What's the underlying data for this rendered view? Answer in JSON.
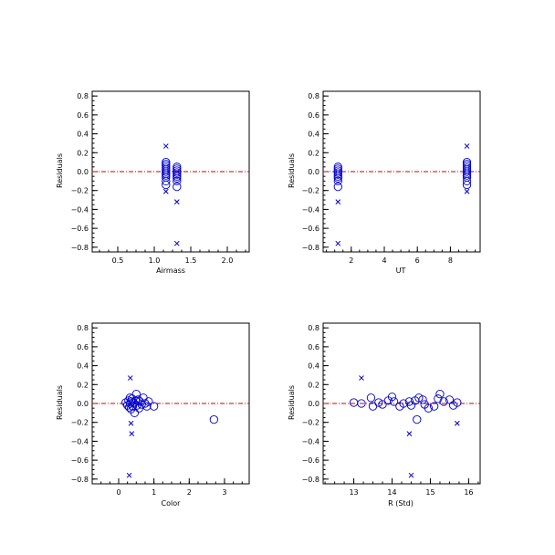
{
  "colors": {
    "axis": "#000000",
    "marker": "#0000cc",
    "zero_line": "#cc0000",
    "background": "#ffffff"
  },
  "chart_data": [
    {
      "type": "scatter",
      "xlabel": "Airmass",
      "ylabel": "Residuals",
      "xlim": [
        0.15,
        2.3
      ],
      "ylim": [
        -0.85,
        0.85
      ],
      "xticks": [
        0.5,
        1.0,
        1.5,
        2.0
      ],
      "xticklabels": [
        "0.5",
        "1.0",
        "1.5",
        "2.0"
      ],
      "yticks": [
        -0.8,
        -0.6,
        -0.4,
        -0.2,
        0.0,
        0.2,
        0.4,
        0.6,
        0.8
      ],
      "yticklabels": [
        "−0.8",
        "−0.6",
        "−0.4",
        "−0.2",
        "0.0",
        "0.2",
        "0.4",
        "0.6",
        "0.8"
      ],
      "zero_line": 0,
      "circles": [
        [
          1.16,
          0.1
        ],
        [
          1.16,
          0.08
        ],
        [
          1.16,
          0.06
        ],
        [
          1.16,
          0.04
        ],
        [
          1.16,
          0.02
        ],
        [
          1.16,
          0.0
        ],
        [
          1.16,
          -0.02
        ],
        [
          1.16,
          -0.04
        ],
        [
          1.16,
          -0.06
        ],
        [
          1.16,
          -0.1
        ],
        [
          1.16,
          -0.14
        ],
        [
          1.31,
          0.05
        ],
        [
          1.31,
          0.03
        ],
        [
          1.31,
          0.01
        ],
        [
          1.31,
          -0.01
        ],
        [
          1.31,
          -0.03
        ],
        [
          1.31,
          -0.05
        ],
        [
          1.31,
          -0.07
        ],
        [
          1.31,
          -0.1
        ],
        [
          1.31,
          -0.16
        ]
      ],
      "crosses": [
        [
          1.16,
          0.27
        ],
        [
          1.16,
          -0.21
        ],
        [
          1.31,
          -0.32
        ],
        [
          1.31,
          -0.76
        ]
      ]
    },
    {
      "type": "scatter",
      "xlabel": "UT",
      "ylabel": "Residuals",
      "xlim": [
        0.3,
        9.8
      ],
      "ylim": [
        -0.85,
        0.85
      ],
      "xticks": [
        2,
        4,
        6,
        8
      ],
      "xticklabels": [
        "2",
        "4",
        "6",
        "8"
      ],
      "yticks": [
        -0.8,
        -0.6,
        -0.4,
        -0.2,
        0.0,
        0.2,
        0.4,
        0.6,
        0.8
      ],
      "yticklabels": [
        "−0.8",
        "−0.6",
        "−0.4",
        "−0.2",
        "0.0",
        "0.2",
        "0.4",
        "0.6",
        "0.8"
      ],
      "zero_line": 0,
      "circles": [
        [
          1.2,
          0.05
        ],
        [
          1.2,
          0.03
        ],
        [
          1.2,
          0.01
        ],
        [
          1.2,
          -0.01
        ],
        [
          1.2,
          -0.03
        ],
        [
          1.2,
          -0.05
        ],
        [
          1.2,
          -0.07
        ],
        [
          1.2,
          -0.1
        ],
        [
          1.2,
          -0.16
        ],
        [
          9.0,
          0.1
        ],
        [
          9.0,
          0.08
        ],
        [
          9.0,
          0.06
        ],
        [
          9.0,
          0.04
        ],
        [
          9.0,
          0.02
        ],
        [
          9.0,
          0.0
        ],
        [
          9.0,
          -0.02
        ],
        [
          9.0,
          -0.04
        ],
        [
          9.0,
          -0.06
        ],
        [
          9.0,
          -0.1
        ],
        [
          9.0,
          -0.14
        ]
      ],
      "crosses": [
        [
          1.2,
          -0.32
        ],
        [
          1.2,
          -0.76
        ],
        [
          9.0,
          0.27
        ],
        [
          9.0,
          -0.21
        ]
      ]
    },
    {
      "type": "scatter",
      "xlabel": "Color",
      "ylabel": "Residuals",
      "xlim": [
        -0.75,
        3.7
      ],
      "ylim": [
        -0.85,
        0.85
      ],
      "xticks": [
        0,
        1,
        2,
        3
      ],
      "xticklabels": [
        "0",
        "1",
        "2",
        "3"
      ],
      "yticks": [
        -0.8,
        -0.6,
        -0.4,
        -0.2,
        0.0,
        0.2,
        0.4,
        0.6,
        0.8
      ],
      "yticklabels": [
        "−0.8",
        "−0.6",
        "−0.4",
        "−0.2",
        "0.0",
        "0.2",
        "0.4",
        "0.6",
        "0.8"
      ],
      "zero_line": 0,
      "circles": [
        [
          0.2,
          0.01
        ],
        [
          0.25,
          -0.02
        ],
        [
          0.28,
          0.03
        ],
        [
          0.3,
          -0.04
        ],
        [
          0.32,
          0.06
        ],
        [
          0.33,
          0.0
        ],
        [
          0.35,
          -0.06
        ],
        [
          0.36,
          0.02
        ],
        [
          0.38,
          0.05
        ],
        [
          0.4,
          -0.03
        ],
        [
          0.42,
          0.01
        ],
        [
          0.45,
          -0.1
        ],
        [
          0.48,
          0.03
        ],
        [
          0.5,
          0.1
        ],
        [
          0.52,
          -0.02
        ],
        [
          0.55,
          0.04
        ],
        [
          0.58,
          -0.05
        ],
        [
          0.6,
          0.02
        ],
        [
          0.65,
          -0.01
        ],
        [
          0.7,
          0.06
        ],
        [
          0.75,
          0.0
        ],
        [
          0.8,
          -0.03
        ],
        [
          0.85,
          0.02
        ],
        [
          1.0,
          -0.03
        ],
        [
          2.7,
          -0.17
        ]
      ],
      "crosses": [
        [
          0.33,
          0.27
        ],
        [
          0.35,
          -0.21
        ],
        [
          0.37,
          -0.32
        ],
        [
          0.3,
          -0.76
        ]
      ]
    },
    {
      "type": "scatter",
      "xlabel": "R (Std)",
      "ylabel": "Residuals",
      "xlim": [
        12.2,
        16.3
      ],
      "ylim": [
        -0.85,
        0.85
      ],
      "xticks": [
        13,
        14,
        15,
        16
      ],
      "xticklabels": [
        "13",
        "14",
        "15",
        "16"
      ],
      "yticks": [
        -0.8,
        -0.6,
        -0.4,
        -0.2,
        0.0,
        0.2,
        0.4,
        0.6,
        0.8
      ],
      "yticklabels": [
        "−0.8",
        "−0.6",
        "−0.4",
        "−0.2",
        "0.0",
        "0.2",
        "0.4",
        "0.6",
        "0.8"
      ],
      "zero_line": 0,
      "circles": [
        [
          13.0,
          0.01
        ],
        [
          13.2,
          0.0
        ],
        [
          13.45,
          0.06
        ],
        [
          13.5,
          -0.03
        ],
        [
          13.65,
          0.01
        ],
        [
          13.75,
          -0.01
        ],
        [
          13.9,
          0.03
        ],
        [
          14.0,
          0.07
        ],
        [
          14.05,
          0.02
        ],
        [
          14.2,
          -0.03
        ],
        [
          14.3,
          0.0
        ],
        [
          14.45,
          0.02
        ],
        [
          14.5,
          -0.02
        ],
        [
          14.6,
          0.03
        ],
        [
          14.65,
          -0.17
        ],
        [
          14.7,
          0.06
        ],
        [
          14.8,
          0.04
        ],
        [
          14.85,
          -0.01
        ],
        [
          14.95,
          -0.05
        ],
        [
          15.1,
          -0.03
        ],
        [
          15.2,
          0.05
        ],
        [
          15.25,
          0.1
        ],
        [
          15.35,
          0.02
        ],
        [
          15.5,
          0.04
        ],
        [
          15.6,
          -0.02
        ],
        [
          15.7,
          0.01
        ]
      ],
      "crosses": [
        [
          13.2,
          0.27
        ],
        [
          14.45,
          -0.32
        ],
        [
          14.5,
          -0.76
        ],
        [
          15.7,
          -0.21
        ]
      ]
    }
  ]
}
